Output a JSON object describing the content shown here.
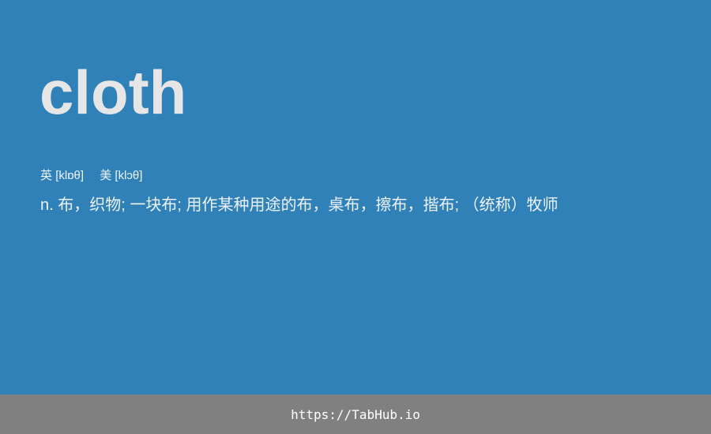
{
  "card": {
    "word": "cloth",
    "phonetic_uk_label": "英",
    "phonetic_uk": "[klɒθ]",
    "phonetic_us_label": "美",
    "phonetic_us": "[klɔθ]",
    "definition": "n. 布，织物; 一块布; 用作某种用途的布，桌布，擦布，揩布; （统称）牧师"
  },
  "footer": {
    "url": "https://TabHub.io"
  },
  "colors": {
    "background": "#2f81b8",
    "word": "#e6e6e6",
    "footer_bg": "#808080"
  }
}
